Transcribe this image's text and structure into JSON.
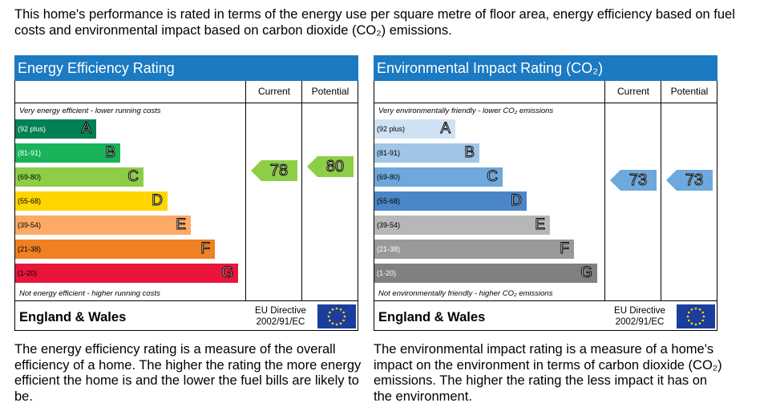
{
  "intro": "This home's performance is rated in terms of the energy use per square metre of floor area, energy efficiency based on fuel costs and environmental impact based on carbon dioxide (CO₂) emissions.",
  "colors": {
    "header_blue": "#1b7ac2",
    "eu_blue": "#1a3d9e",
    "eu_star": "#ffdd00"
  },
  "panels": [
    {
      "id": "energy",
      "title": "Energy Efficiency Rating",
      "col_current": "Current",
      "col_potential": "Potential",
      "top_note": "Very energy efficient - lower running costs",
      "bottom_note": "Not energy efficient - higher running costs",
      "bands": [
        {
          "letter": "A",
          "range": "(92 plus)",
          "color": "#008054",
          "range_color": "#ffffff"
        },
        {
          "letter": "B",
          "range": "(81-91)",
          "color": "#19b459",
          "range_color": "#ffffff"
        },
        {
          "letter": "C",
          "range": "(69-80)",
          "color": "#8dce46",
          "range_color": "#000000"
        },
        {
          "letter": "D",
          "range": "(55-68)",
          "color": "#ffd500",
          "range_color": "#000000"
        },
        {
          "letter": "E",
          "range": "(39-54)",
          "color": "#fcaa65",
          "range_color": "#000000"
        },
        {
          "letter": "F",
          "range": "(21-38)",
          "color": "#ef8023",
          "range_color": "#000000"
        },
        {
          "letter": "G",
          "range": "(1-20)",
          "color": "#e9153b",
          "range_color": "#000000"
        }
      ],
      "current": {
        "value": "78",
        "band": "C",
        "color": "#8dce46"
      },
      "potential": {
        "value": "80",
        "band": "C",
        "color": "#8dce46"
      },
      "footer": "England & Wales",
      "eu_line1": "EU Directive",
      "eu_line2": "2002/91/EC",
      "description": "The energy efficiency rating is a measure of the overall efficiency of a home. The higher the rating the more energy efficient the home is and the lower the fuel bills are likely to be."
    },
    {
      "id": "environment",
      "title": "Environmental Impact Rating (CO₂)",
      "col_current": "Current",
      "col_potential": "Potential",
      "top_note": "Very environmentally friendly - lower CO₂ emissions",
      "bottom_note": "Not environmentally friendly - higher CO₂ emissions",
      "bands": [
        {
          "letter": "A",
          "range": "(92 plus)",
          "color": "#cfe2f3",
          "range_color": "#000000"
        },
        {
          "letter": "B",
          "range": "(81-91)",
          "color": "#9fc5e8",
          "range_color": "#000000"
        },
        {
          "letter": "C",
          "range": "(69-80)",
          "color": "#6fa8dc",
          "range_color": "#000000"
        },
        {
          "letter": "D",
          "range": "(55-68)",
          "color": "#4a86c8",
          "range_color": "#000000"
        },
        {
          "letter": "E",
          "range": "(39-54)",
          "color": "#b7b7b7",
          "range_color": "#000000"
        },
        {
          "letter": "F",
          "range": "(21-38)",
          "color": "#999999",
          "range_color": "#ffffff"
        },
        {
          "letter": "G",
          "range": "(1-20)",
          "color": "#808080",
          "range_color": "#ffffff"
        }
      ],
      "current": {
        "value": "73",
        "band": "C",
        "color": "#6fa8dc"
      },
      "potential": {
        "value": "73",
        "band": "C",
        "color": "#6fa8dc"
      },
      "footer": "England & Wales",
      "eu_line1": "EU Directive",
      "eu_line2": "2002/91/EC",
      "description": "The environmental impact rating is a measure of a home's impact on the environment in terms of carbon dioxide (CO₂) emissions. The higher the rating the less impact it has on the environment."
    }
  ]
}
